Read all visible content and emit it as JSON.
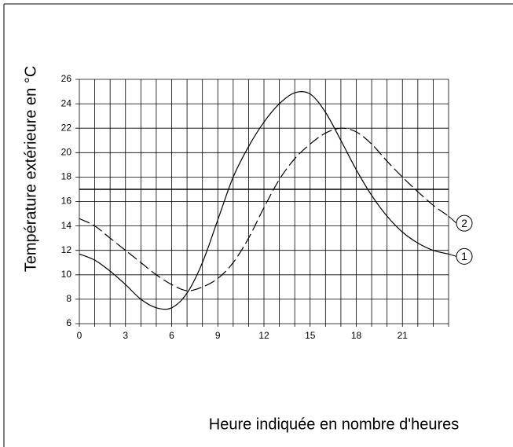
{
  "chart_data": {
    "type": "line",
    "y_label": "Température extérieure en °C",
    "x_label": "Heure indiquée en nombre d'heures",
    "x": [
      0,
      1,
      2,
      3,
      4,
      5,
      6,
      7,
      8,
      9,
      10,
      11,
      12,
      13,
      14,
      15,
      16,
      17,
      18,
      19,
      20,
      21,
      22,
      23,
      24
    ],
    "series": [
      {
        "name": "1",
        "color": "#000000",
        "style": "solid",
        "values": [
          11.7,
          11.2,
          10.3,
          9.2,
          8.0,
          7.3,
          7.3,
          8.5,
          11,
          14.5,
          18,
          20.5,
          22.5,
          24,
          24.9,
          24.8,
          23.3,
          21,
          18.6,
          16.5,
          14.8,
          13.5,
          12.6,
          12,
          11.7
        ]
      },
      {
        "name": "2",
        "color": "#000000",
        "style": "dashed",
        "values": [
          14.6,
          14,
          13,
          12,
          11,
          10,
          9.2,
          8.7,
          9,
          9.7,
          11,
          13,
          15.5,
          17.8,
          19.5,
          20.7,
          21.6,
          22,
          21.7,
          20.7,
          19.3,
          18,
          16.8,
          15.7,
          14.8
        ]
      }
    ],
    "reference_line": 17,
    "xlim": [
      0,
      24
    ],
    "xticks": [
      0,
      3,
      6,
      9,
      12,
      15,
      18,
      21
    ],
    "xgrid": [
      0,
      1,
      2,
      3,
      4,
      5,
      6,
      7,
      8,
      9,
      10,
      11,
      12,
      13,
      14,
      15,
      16,
      17,
      18,
      19,
      20,
      21,
      22,
      23,
      24
    ],
    "ylim": [
      6,
      26
    ],
    "yticks": [
      6,
      8,
      10,
      12,
      14,
      16,
      18,
      20,
      22,
      24,
      26
    ],
    "grid": true
  }
}
